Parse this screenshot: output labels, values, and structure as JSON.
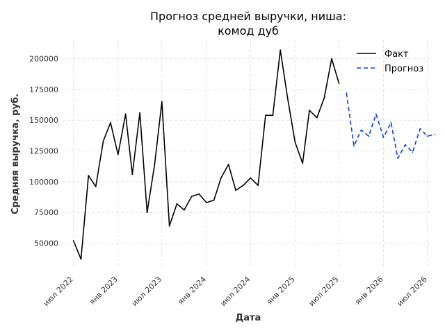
{
  "chart_data": {
    "type": "line",
    "title_line1": "Прогноз средней выручки, ниша:",
    "title_line2": "комод дуб",
    "xlabel": "Дата",
    "ylabel": "Средняя выручка, руб.",
    "xlim": [
      "2022-05-17",
      "2026-07-25"
    ],
    "ylim": [
      30000,
      215000
    ],
    "x_ticks": [
      {
        "date": "2022-07-01",
        "label": "июл 2022"
      },
      {
        "date": "2023-01-01",
        "label": "янв 2023"
      },
      {
        "date": "2023-07-01",
        "label": "июл 2023"
      },
      {
        "date": "2024-01-01",
        "label": "янв 2024"
      },
      {
        "date": "2024-07-01",
        "label": "июл 2024"
      },
      {
        "date": "2025-01-01",
        "label": "янв 2025"
      },
      {
        "date": "2025-07-01",
        "label": "июл 2025"
      },
      {
        "date": "2026-01-01",
        "label": "янв 2026"
      },
      {
        "date": "2026-07-01",
        "label": "июл 2026"
      }
    ],
    "y_ticks": [
      {
        "value": 50000,
        "label": "50000"
      },
      {
        "value": 75000,
        "label": "75000"
      },
      {
        "value": 100000,
        "label": "100000"
      },
      {
        "value": 125000,
        "label": "125000"
      },
      {
        "value": 150000,
        "label": "150000"
      },
      {
        "value": 175000,
        "label": "175000"
      },
      {
        "value": 200000,
        "label": "200000"
      }
    ],
    "grid": true,
    "legend_position": "top-right",
    "series": [
      {
        "name": "Факт",
        "color": "#000000",
        "style": "solid",
        "x": [
          "2022-07-01",
          "2022-08-01",
          "2022-09-01",
          "2022-10-01",
          "2022-11-01",
          "2022-12-01",
          "2023-01-01",
          "2023-02-01",
          "2023-03-01",
          "2023-04-01",
          "2023-05-01",
          "2023-06-01",
          "2023-07-01",
          "2023-08-01",
          "2023-09-01",
          "2023-10-01",
          "2023-11-01",
          "2023-12-01",
          "2024-01-01",
          "2024-02-01",
          "2024-03-01",
          "2024-04-01",
          "2024-05-01",
          "2024-06-01",
          "2024-07-01",
          "2024-08-01",
          "2024-09-01",
          "2024-10-01",
          "2024-11-01",
          "2024-12-01",
          "2025-01-01",
          "2025-02-01",
          "2025-03-01",
          "2025-04-01",
          "2025-05-01",
          "2025-06-01",
          "2025-07-01"
        ],
        "values": [
          52000,
          37000,
          105000,
          96000,
          133000,
          148000,
          122000,
          155000,
          106000,
          156000,
          75000,
          114000,
          165000,
          64000,
          82000,
          77000,
          88000,
          90000,
          83000,
          85000,
          103000,
          114000,
          93000,
          97000,
          103000,
          97000,
          154000,
          154000,
          207000,
          168000,
          132000,
          115000,
          158000,
          152000,
          168000,
          200000,
          180000
        ]
      },
      {
        "name": "Прогноз",
        "color": "#0a3fd4",
        "style": "dashed",
        "x": [
          "2025-08-01",
          "2025-09-01",
          "2025-10-01",
          "2025-11-01",
          "2025-12-01",
          "2026-01-01",
          "2026-02-01",
          "2026-03-01",
          "2026-04-01",
          "2026-05-01",
          "2026-06-01",
          "2026-07-01",
          "2026-08-01"
        ],
        "values": [
          172000,
          129000,
          142000,
          137000,
          155000,
          136000,
          148000,
          119000,
          130000,
          124000,
          143000,
          137000,
          138500
        ]
      }
    ]
  }
}
